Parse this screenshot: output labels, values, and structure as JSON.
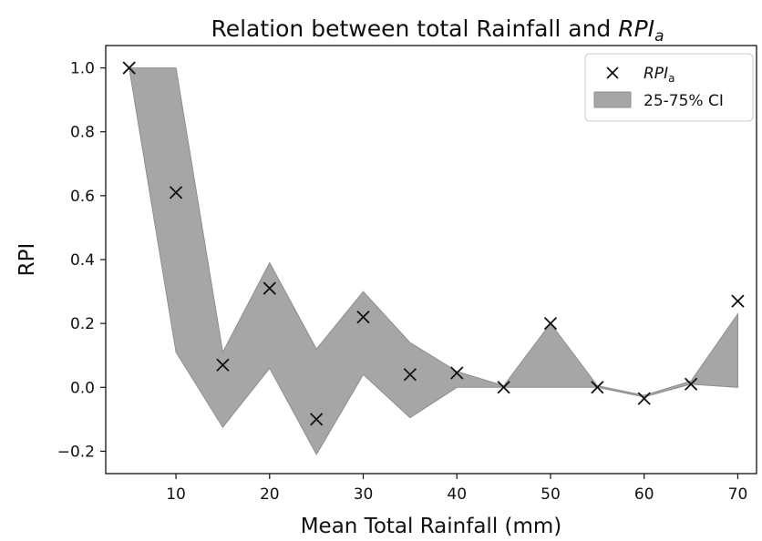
{
  "chart_data": {
    "type": "scatter",
    "title_main": "Relation between total Rainfall and ",
    "title_var": "RPI",
    "title_sub": "a",
    "xlabel": "Mean Total Rainfall (mm)",
    "ylabel": "RPI",
    "xlim": [
      2.5,
      72
    ],
    "ylim": [
      -0.27,
      1.07
    ],
    "xticks": [
      "10",
      "20",
      "30",
      "40",
      "50",
      "60",
      "70"
    ],
    "yticks": [
      "−0.2",
      "0.0",
      "0.2",
      "0.4",
      "0.6",
      "0.8",
      "1.0"
    ],
    "legend": {
      "position": "top-right",
      "marker_label_var": "RPI",
      "marker_label_sub": "a",
      "band_label": "25-75% CI"
    },
    "series": [
      {
        "kind": "scatter",
        "marker": "x",
        "x": [
          5,
          10,
          15,
          20,
          25,
          30,
          35,
          40,
          45,
          50,
          55,
          60,
          65,
          70
        ],
        "y": [
          1.0,
          0.61,
          0.07,
          0.31,
          -0.1,
          0.22,
          0.04,
          0.045,
          0.0,
          0.2,
          0.0,
          -0.035,
          0.01,
          0.27
        ]
      },
      {
        "kind": "band",
        "x": [
          5,
          10,
          15,
          20,
          25,
          30,
          35,
          40,
          45,
          50,
          55,
          60,
          65,
          70
        ],
        "lower": [
          1.0,
          0.11,
          -0.125,
          0.06,
          -0.21,
          0.04,
          -0.095,
          0.0,
          0.0,
          0.0,
          0.0,
          -0.03,
          0.01,
          0.0
        ],
        "upper": [
          1.0,
          1.0,
          0.11,
          0.39,
          0.12,
          0.3,
          0.14,
          0.05,
          0.005,
          0.2,
          0.005,
          -0.025,
          0.02,
          0.23
        ]
      }
    ]
  },
  "colors": {
    "band_fill": "#a6a6a6",
    "band_edge": "#8e8e8e",
    "marker": "#111111",
    "axis": "#111111"
  }
}
